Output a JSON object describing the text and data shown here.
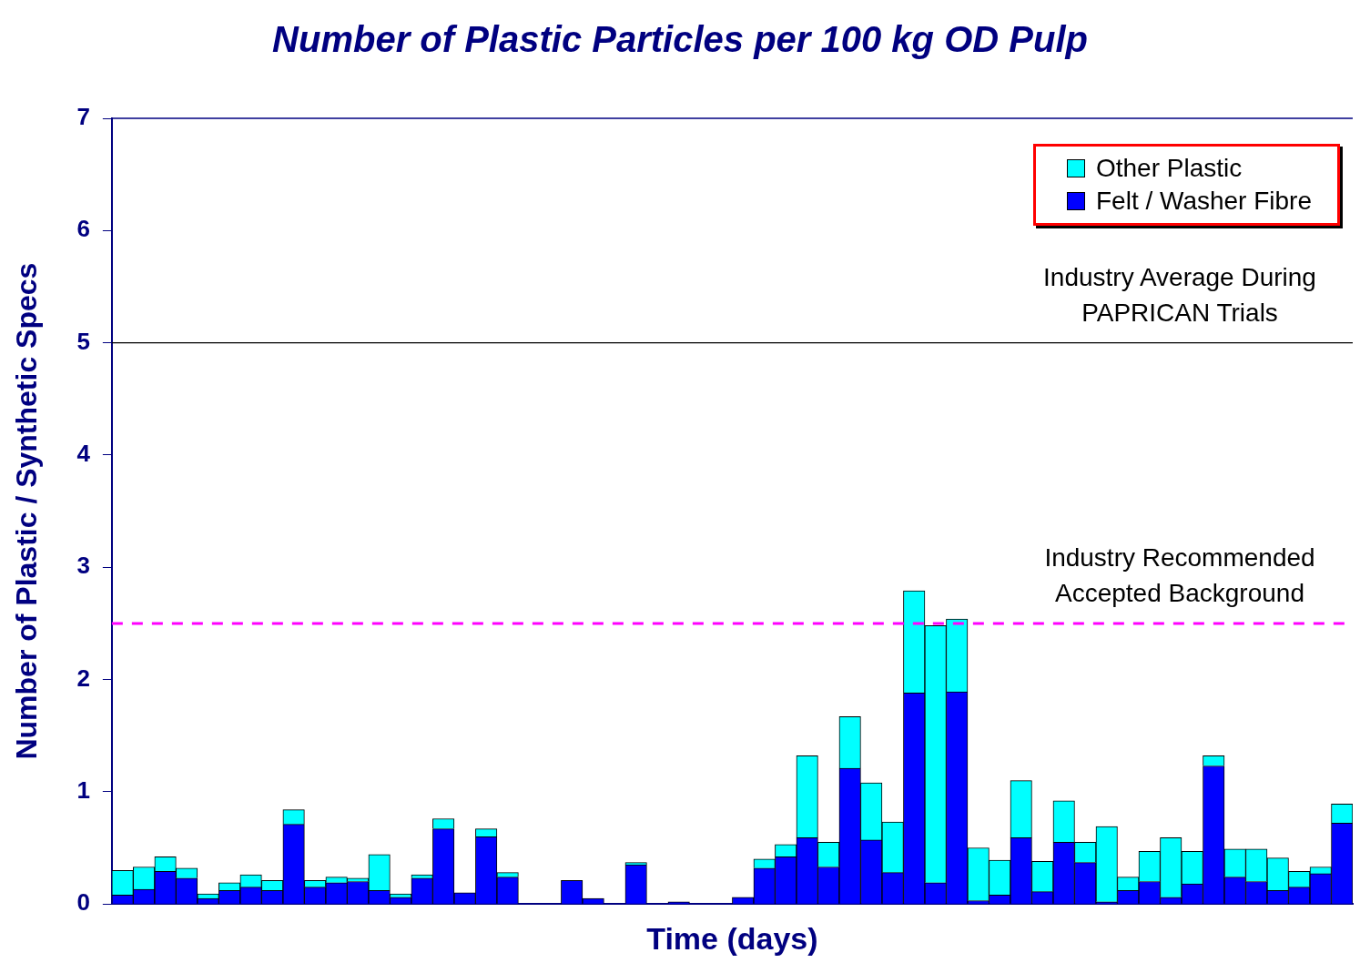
{
  "chart_data": {
    "type": "bar",
    "title": "Number of Plastic Particles per 100 kg OD Pulp",
    "xlabel": "Time (days)",
    "ylabel": "Number of Plastic / Synthetic Specs",
    "categories": [
      null,
      null,
      null,
      null,
      null,
      null,
      null,
      null,
      null,
      null,
      null,
      null,
      null,
      null,
      null,
      null,
      null,
      null,
      null,
      null,
      null,
      null,
      null,
      null,
      null,
      null,
      null,
      null,
      null,
      null,
      null,
      null,
      null,
      null,
      null,
      null,
      null,
      null,
      null,
      null,
      null,
      null,
      null,
      null,
      null,
      null,
      null,
      null,
      null,
      null,
      null,
      null,
      null,
      null,
      null,
      null,
      null,
      null
    ],
    "stacked": true,
    "series": [
      {
        "name": "Felt / Washer Fibre",
        "color": "#0000ff",
        "values": [
          0.08,
          0.13,
          0.29,
          0.23,
          0.05,
          0.12,
          0.15,
          0.12,
          0.71,
          0.15,
          0.19,
          0.2,
          0.12,
          0.06,
          0.23,
          0.67,
          0.1,
          0.6,
          0.24,
          0,
          0,
          0.21,
          0.05,
          0,
          0.35,
          0,
          0.02,
          0,
          0,
          0.06,
          0.32,
          0.42,
          0.59,
          0.33,
          1.21,
          0.57,
          0.28,
          1.88,
          0.19,
          1.89,
          0.03,
          0.08,
          0.59,
          0.11,
          0.55,
          0.37,
          0.02,
          0.12,
          0.2,
          0.06,
          0.18,
          1.23,
          0.24,
          0.2,
          0.12,
          0.15,
          0.27,
          0.72
        ]
      },
      {
        "name": "Other Plastic",
        "color": "#00ffff",
        "values": [
          0.22,
          0.2,
          0.13,
          0.09,
          0.04,
          0.07,
          0.11,
          0.09,
          0.13,
          0.06,
          0.05,
          0.03,
          0.32,
          0.03,
          0.03,
          0.09,
          0,
          0.07,
          0.04,
          0,
          0,
          0,
          0,
          0,
          0.02,
          0,
          0,
          0,
          0,
          0,
          0.08,
          0.11,
          0.73,
          0.22,
          0.46,
          0.51,
          0.45,
          0.91,
          2.29,
          0.65,
          0.47,
          0.31,
          0.51,
          0.27,
          0.37,
          0.18,
          0.67,
          0.12,
          0.27,
          0.53,
          0.29,
          0.09,
          0.25,
          0.29,
          0.29,
          0.14,
          0.06,
          0.17
        ]
      }
    ],
    "ylim": [
      0,
      7
    ],
    "yticks": [
      0,
      1,
      2,
      3,
      4,
      5,
      6,
      7
    ],
    "tick_labels": "y",
    "grid": false,
    "legend": "top right",
    "ref_lines": [
      {
        "axis": "y",
        "value": 5,
        "label": "Industry Average During PAPRICAN Trials",
        "color": "#000000",
        "line_style": "solid"
      },
      {
        "axis": "y",
        "value": 2.5,
        "label": "Industry Recommended Accepted Background",
        "color": "#ff00ff",
        "line_style": "dashed"
      }
    ]
  }
}
